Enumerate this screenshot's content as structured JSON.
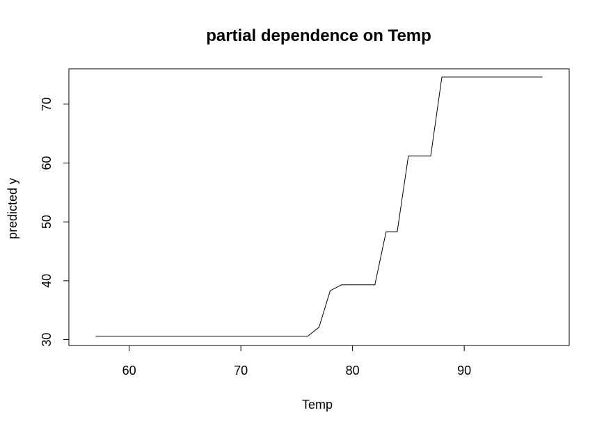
{
  "chart_data": {
    "type": "line",
    "title": "partial dependence on Temp",
    "xlabel": "Temp",
    "ylabel": "predicted y",
    "xlim": [
      54.6,
      99.4
    ],
    "ylim": [
      29.0,
      76.0
    ],
    "xticks": [
      60,
      70,
      80,
      90
    ],
    "yticks": [
      30,
      40,
      50,
      60,
      70
    ],
    "grid": false,
    "legend": "none",
    "line_color": "#000000",
    "x": [
      57,
      76,
      77,
      78,
      79,
      80,
      81,
      82,
      83,
      84,
      85,
      86,
      87,
      88,
      89,
      90,
      97
    ],
    "y": [
      30.6,
      30.6,
      32.1,
      38.3,
      39.3,
      39.3,
      39.3,
      39.3,
      48.3,
      48.3,
      61.2,
      61.2,
      61.2,
      74.6,
      74.6,
      74.6,
      74.6
    ]
  }
}
